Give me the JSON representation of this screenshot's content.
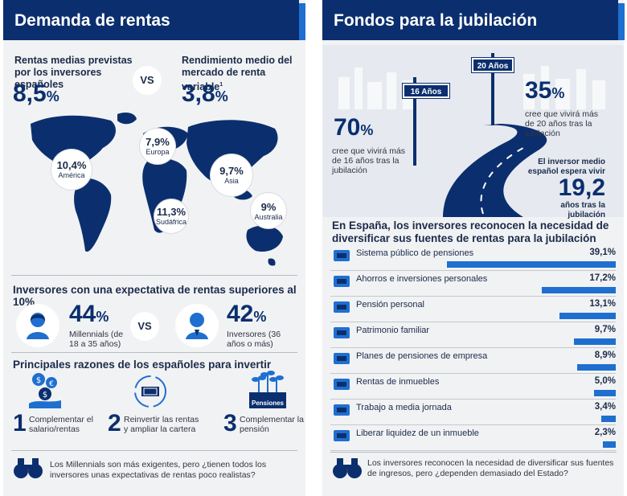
{
  "left": {
    "title": "Demanda de rentas",
    "expected_label": "Rentas medias previstas por los inversores españoles",
    "expected_value": "8,5",
    "vs": "VS",
    "variable_label": "Rendimiento medio del mercado de renta variable",
    "variable_sup": "1",
    "variable_value": "3,8",
    "percent": "%",
    "regions": [
      {
        "value": "10,4%",
        "label": "América"
      },
      {
        "value": "7,9%",
        "label": "Europa"
      },
      {
        "value": "9,7%",
        "label": "Asia"
      },
      {
        "value": "11,3%",
        "label": "Sudáfrica"
      },
      {
        "value": "9%",
        "label": "Australia"
      }
    ],
    "section2_title": "Inversores con una expectativa de rentas superiores al 10%",
    "millennials_value": "44",
    "millennials_label": "Millennials (de 18 a 35 años)",
    "investors_value": "42",
    "investors_label": "Inversores (36 años o más)",
    "section3_title": "Principales razones de los españoles para invertir",
    "reasons": [
      {
        "n": "1",
        "text": "Complementar el salario/rentas"
      },
      {
        "n": "2",
        "text": "Reinvertir las rentas y ampliar la cartera"
      },
      {
        "n": "3",
        "text": "Complementar la pensión"
      }
    ],
    "pension_tag": "Pensiones",
    "footer": "Los Millennials son más exigentes, pero ¿tienen todos los inversores unas expectativas de rentas poco realistas?"
  },
  "right": {
    "title": "Fondos para la jubilación",
    "sign_16": "16 Años",
    "sign_20": "20 Años",
    "stat_70_value": "70",
    "stat_70_label": "cree que vivirá más de 16 años tras la jubilación",
    "stat_35_value": "35",
    "stat_35_label": "cree que vivirá más de 20 años tras la jubilación",
    "medio_label": "El inversor medio español espera vivir",
    "medio_value": "19,2",
    "medio_suffix": "años tras la jubilación",
    "percent": "%",
    "section_title": "En España, los inversores reconocen la necesidad de diversificar sus fuentes de rentas para la jubilación",
    "bars": [
      {
        "label": "Sistema público de pensiones",
        "value": "39,1%",
        "pct": 39.1,
        "icon": "columns-icon"
      },
      {
        "label": "Ahorros e inversiones personales",
        "value": "17,2%",
        "pct": 17.2,
        "icon": "piggy-bank-icon"
      },
      {
        "label": "Pensión personal",
        "value": "13,1%",
        "pct": 13.1,
        "icon": "person-icon"
      },
      {
        "label": "Patrimonio familiar",
        "value": "9,7%",
        "pct": 9.7,
        "icon": "gold-bars-icon"
      },
      {
        "label": "Planes de pensiones de empresa",
        "value": "8,9%",
        "pct": 8.9,
        "icon": "building-icon"
      },
      {
        "label": "Rentas de inmuebles",
        "value": "5,0%",
        "pct": 5.0,
        "icon": "house-icon"
      },
      {
        "label": "Trabajo a media jornada",
        "value": "3,4%",
        "pct": 3.4,
        "icon": "coins-icon"
      },
      {
        "label": "Liberar liquidez de un inmueble",
        "value": "2,3%",
        "pct": 2.3,
        "icon": "house-coin-icon"
      }
    ],
    "footer": "Los inversores reconocen la necesidad de diversificar sus fuentes de ingresos, pero ¿dependen demasiado del Estado?"
  },
  "colors": {
    "navy": "#0b2f6e",
    "blue": "#1e6fd0",
    "panel": "#f1f2f3"
  }
}
